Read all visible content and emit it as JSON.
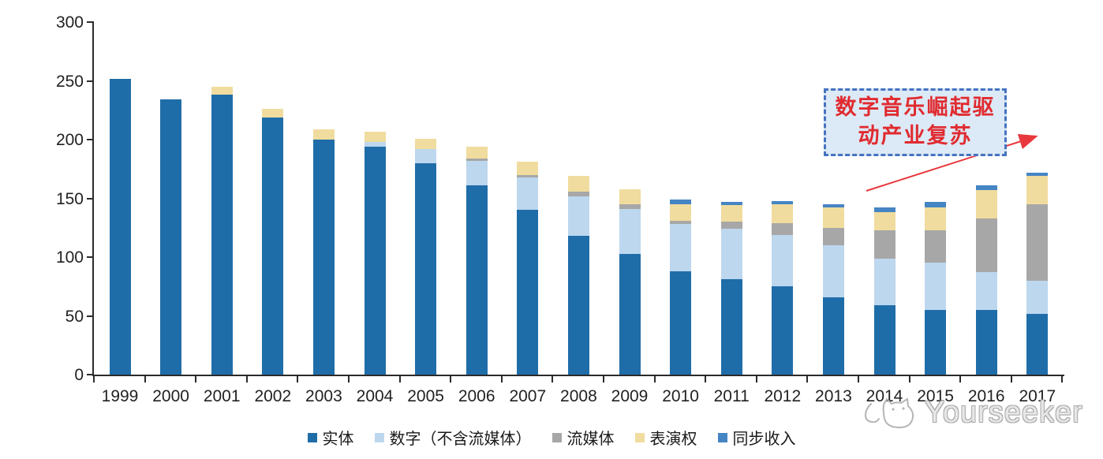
{
  "chart_data": {
    "type": "bar",
    "stacked": true,
    "title": "",
    "xlabel": "",
    "ylabel": "",
    "ylim": [
      0,
      300
    ],
    "yticks": [
      0,
      50,
      100,
      150,
      200,
      250,
      300
    ],
    "grid": false,
    "legend_position": "bottom",
    "categories": [
      "1999",
      "2000",
      "2001",
      "2002",
      "2003",
      "2004",
      "2005",
      "2006",
      "2007",
      "2008",
      "2009",
      "2010",
      "2011",
      "2012",
      "2013",
      "2014",
      "2015",
      "2016",
      "2017"
    ],
    "series": [
      {
        "name": "实体",
        "key": "physical",
        "color": "#1f6da8",
        "values": [
          252,
          234,
          238,
          219,
          200,
          194,
          180,
          161,
          140,
          118,
          103,
          88,
          81,
          75,
          66,
          59,
          55,
          55,
          52
        ]
      },
      {
        "name": "数字（不含流媒体）",
        "key": "digital-ex-streaming",
        "color": "#bdd7ee",
        "values": [
          0,
          0,
          0,
          0,
          0,
          4,
          12,
          21,
          28,
          34,
          38,
          40,
          43,
          44,
          44,
          40,
          40,
          32,
          28
        ]
      },
      {
        "name": "流媒体",
        "key": "streaming",
        "color": "#a7a7a7",
        "values": [
          0,
          0,
          0,
          0,
          0,
          0,
          0,
          2,
          2,
          4,
          4,
          3,
          6,
          10,
          15,
          24,
          28,
          46,
          65
        ]
      },
      {
        "name": "表演权",
        "key": "performance-rights",
        "color": "#f0dc9e",
        "values": [
          0,
          0,
          7,
          7,
          9,
          9,
          9,
          10,
          11,
          13,
          13,
          14,
          14,
          16,
          17,
          15,
          19,
          24,
          24
        ]
      },
      {
        "name": "同步收入",
        "key": "sync-revenue",
        "color": "#4585c4",
        "values": [
          0,
          0,
          0,
          0,
          0,
          0,
          0,
          0,
          0,
          0,
          0,
          4,
          3,
          3,
          3,
          4,
          5,
          4,
          3
        ]
      }
    ],
    "totals": [
      252,
      234,
      245,
      226,
      209,
      207,
      201,
      194,
      181,
      169,
      158,
      149,
      147,
      148,
      145,
      142,
      147,
      161,
      172
    ]
  },
  "annotation": {
    "line1": "数字音乐崛起驱",
    "line2": "动产业复苏",
    "box_fill": "#dce9f6",
    "box_border": "#4673c0",
    "text_color": "#e02b30",
    "arrow_color": "#e8383d"
  },
  "watermark": {
    "text": "Yourseeker"
  }
}
